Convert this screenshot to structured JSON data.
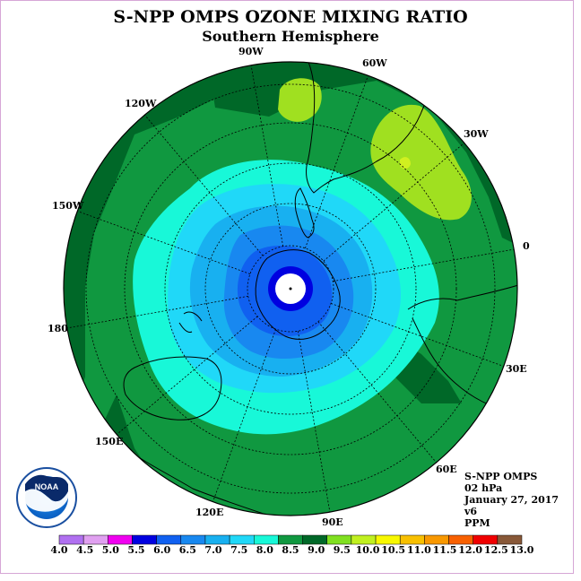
{
  "header": {
    "title": "S-NPP OMPS OZONE MIXING RATIO",
    "subtitle": "Southern Hemisphere"
  },
  "map": {
    "projection": "south polar stereographic",
    "longitude_labels": [
      "90W",
      "60W",
      "30W",
      "0",
      "30E",
      "60E",
      "90E",
      "120E",
      "150E",
      "180",
      "150W",
      "120W"
    ]
  },
  "info": {
    "instrument": "S-NPP OMPS",
    "level": "02 hPa",
    "date": "January 27, 2017",
    "version": "v6",
    "units": "PPM"
  },
  "colorbar": {
    "ticks": [
      "4.0",
      "4.5",
      "5.0",
      "5.5",
      "6.0",
      "6.5",
      "7.0",
      "7.5",
      "8.0",
      "8.5",
      "9.0",
      "9.5",
      "10.0",
      "10.5",
      "11.0",
      "11.5",
      "12.0",
      "12.5",
      "13.0"
    ],
    "colors": [
      "#b070f0",
      "#e0a0f0",
      "#f000f0",
      "#0000e0",
      "#1060f0",
      "#1888f0",
      "#18b0f0",
      "#20d8f8",
      "#18f8d8",
      "#109840",
      "#006828",
      "#80e020",
      "#c0f020",
      "#f8f800",
      "#f8c000",
      "#f89800",
      "#f86000",
      "#f00000",
      "#885838"
    ]
  },
  "logo": {
    "text": "NOAA"
  }
}
